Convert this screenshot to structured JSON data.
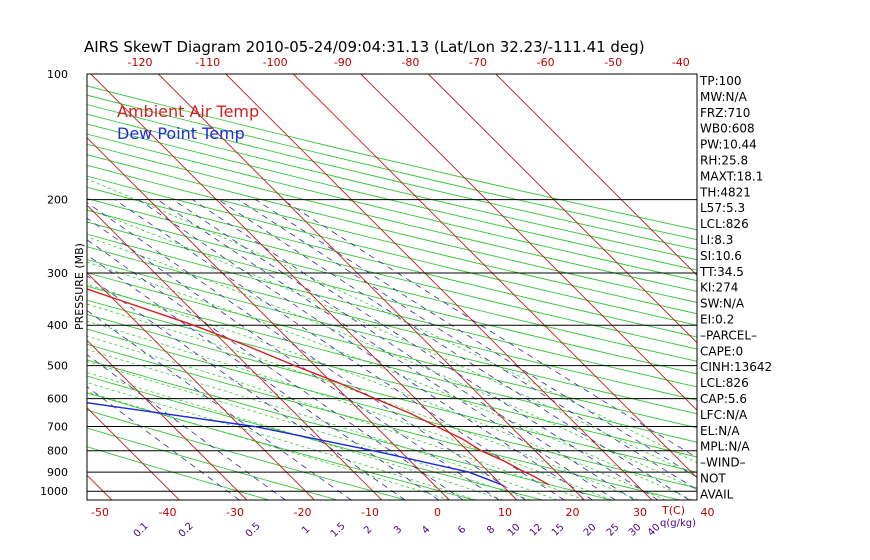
{
  "colors": {
    "ambient": "#d42020",
    "dewpoint": "#1a2ad8",
    "isotherm": "#c41818",
    "dry_adiabat": "#33c633",
    "moist_adiabat": "#33cc33",
    "mixing_ratio": "#3c2aa8",
    "text": "#000000"
  },
  "chart_data": {
    "type": "line",
    "title": "AIRS SkewT Diagram 2010-05-24/09:04:31.13 (Lat/Lon 32.23/-111.41 deg)",
    "ylabel": "PRESSURE (MB)",
    "y_scale": "log",
    "ylim": [
      1050,
      100
    ],
    "top_temp_ticks": [
      "-120",
      "-110",
      "-100",
      "-90",
      "-80",
      "-70",
      "-60",
      "-50",
      "-40"
    ],
    "bottom_temp_ticks": [
      "-50",
      "-40",
      "-30",
      "-20",
      "-10",
      "0",
      "10",
      "20",
      "30",
      "40"
    ],
    "bottom_axis_unit": "T(C)",
    "pressure_ticks": [
      {
        "p": 100,
        "label": "100"
      },
      {
        "p": 200,
        "label": "200"
      },
      {
        "p": 300,
        "label": "300"
      },
      {
        "p": 400,
        "label": "400"
      },
      {
        "p": 500,
        "label": "500"
      },
      {
        "p": 600,
        "label": "600"
      },
      {
        "p": 700,
        "label": "700"
      },
      {
        "p": 800,
        "label": "800"
      },
      {
        "p": 900,
        "label": "900"
      },
      {
        "p": 1000,
        "label": "1000"
      }
    ],
    "mixing_ratio_labels": [
      "0.1",
      "0.2",
      "0.5",
      "1",
      "1.5",
      "2",
      "3",
      "4",
      "6",
      "8",
      "10",
      "12",
      "15",
      "20",
      "25",
      "30",
      "40"
    ],
    "mixing_ratio_unit": "q(g/kg)",
    "legend": [
      "Ambient Air Temp",
      "Dew Point Temp"
    ],
    "series": [
      {
        "name": "Ambient Air Temp",
        "points": [
          {
            "p": 965,
            "t": 7
          },
          {
            "p": 920,
            "t": 6
          },
          {
            "p": 890,
            "t": 5
          },
          {
            "p": 850,
            "t": 4
          },
          {
            "p": 800,
            "t": 2
          },
          {
            "p": 750,
            "t": 1
          },
          {
            "p": 700,
            "t": -1
          },
          {
            "p": 650,
            "t": -3
          },
          {
            "p": 600,
            "t": -6
          },
          {
            "p": 550,
            "t": -9
          },
          {
            "p": 500,
            "t": -13
          },
          {
            "p": 450,
            "t": -17
          },
          {
            "p": 400,
            "t": -22
          },
          {
            "p": 350,
            "t": -29
          },
          {
            "p": 300,
            "t": -37
          },
          {
            "p": 280,
            "t": -41
          },
          {
            "p": 250,
            "t": -47
          },
          {
            "p": 230,
            "t": -49
          },
          {
            "p": 200,
            "t": -53
          },
          {
            "p": 180,
            "t": -56
          },
          {
            "p": 160,
            "t": -60
          },
          {
            "p": 140,
            "t": -63
          },
          {
            "p": 125,
            "t": -66
          },
          {
            "p": 115,
            "t": -68
          },
          {
            "p": 105,
            "t": -70
          }
        ]
      },
      {
        "name": "Dew Point Temp",
        "points": [
          {
            "p": 965,
            "t": 0
          },
          {
            "p": 900,
            "t": -3
          },
          {
            "p": 800,
            "t": -14
          },
          {
            "p": 700,
            "t": -28
          },
          {
            "p": 650,
            "t": -40
          },
          {
            "p": 600,
            "t": -53
          },
          {
            "p": 550,
            "t": -59
          },
          {
            "p": 500,
            "t": -66
          },
          {
            "p": 450,
            "t": -63
          },
          {
            "p": 400,
            "t": -61
          },
          {
            "p": 350,
            "t": -65
          },
          {
            "p": 300,
            "t": -69
          },
          {
            "p": 250,
            "t": -75
          },
          {
            "p": 200,
            "t": -83
          },
          {
            "p": 160,
            "t": -90
          },
          {
            "p": 140,
            "t": -92
          },
          {
            "p": 120,
            "t": -93
          },
          {
            "p": 100,
            "t": -95
          }
        ]
      }
    ]
  },
  "indices": [
    "TP:100",
    "MW:N/A",
    "FRZ:710",
    "WB0:608",
    "PW:10.44",
    "RH:25.8",
    "MAXT:18.1",
    "TH:4821",
    "L57:5.3",
    "LCL:826",
    "LI:8.3",
    "SI:10.6",
    "TT:34.5",
    "KI:274",
    "SW:N/A",
    "EI:0.2",
    "–PARCEL–",
    "CAPE:0",
    "CINH:13642",
    "LCL:826",
    "CAP:5.6",
    "LFC:N/A",
    "EL:N/A",
    "MPL:N/A",
    "–WIND–",
    "NOT",
    "AVAIL"
  ]
}
